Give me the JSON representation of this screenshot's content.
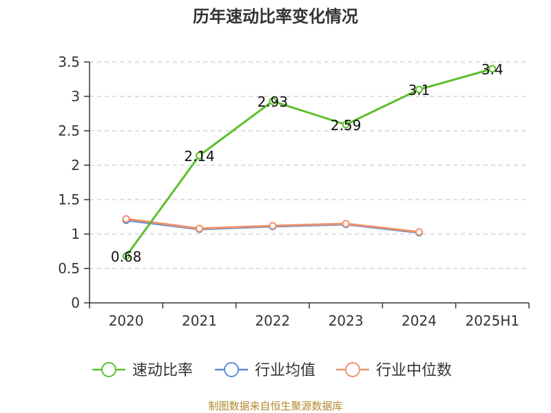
{
  "chart_data": {
    "type": "line",
    "title": "历年速动比率变化情况",
    "xlabel": "",
    "ylabel": "",
    "categories": [
      "2020",
      "2021",
      "2022",
      "2023",
      "2024",
      "2025H1"
    ],
    "ylim": [
      0,
      3.5
    ],
    "yticks": [
      "0",
      "0.5",
      "1",
      "1.5",
      "2",
      "2.5",
      "3",
      "3.5"
    ],
    "grid": true,
    "legend_position": "bottom",
    "series": [
      {
        "name": "速动比率",
        "color": "#5bbf2a",
        "values": [
          0.68,
          2.14,
          2.93,
          2.59,
          3.1,
          3.4
        ],
        "labels": [
          "0.68",
          "2.14",
          "2.93",
          "2.59",
          "3.1",
          "3.4"
        ]
      },
      {
        "name": "行业均值",
        "color": "#5b8bd8",
        "values": [
          1.2,
          1.07,
          1.11,
          1.14,
          1.02,
          null
        ]
      },
      {
        "name": "行业中位数",
        "color": "#f0916a",
        "values": [
          1.22,
          1.08,
          1.12,
          1.15,
          1.03,
          null
        ]
      }
    ],
    "source": "制图数据来自恒生聚源数据库"
  }
}
